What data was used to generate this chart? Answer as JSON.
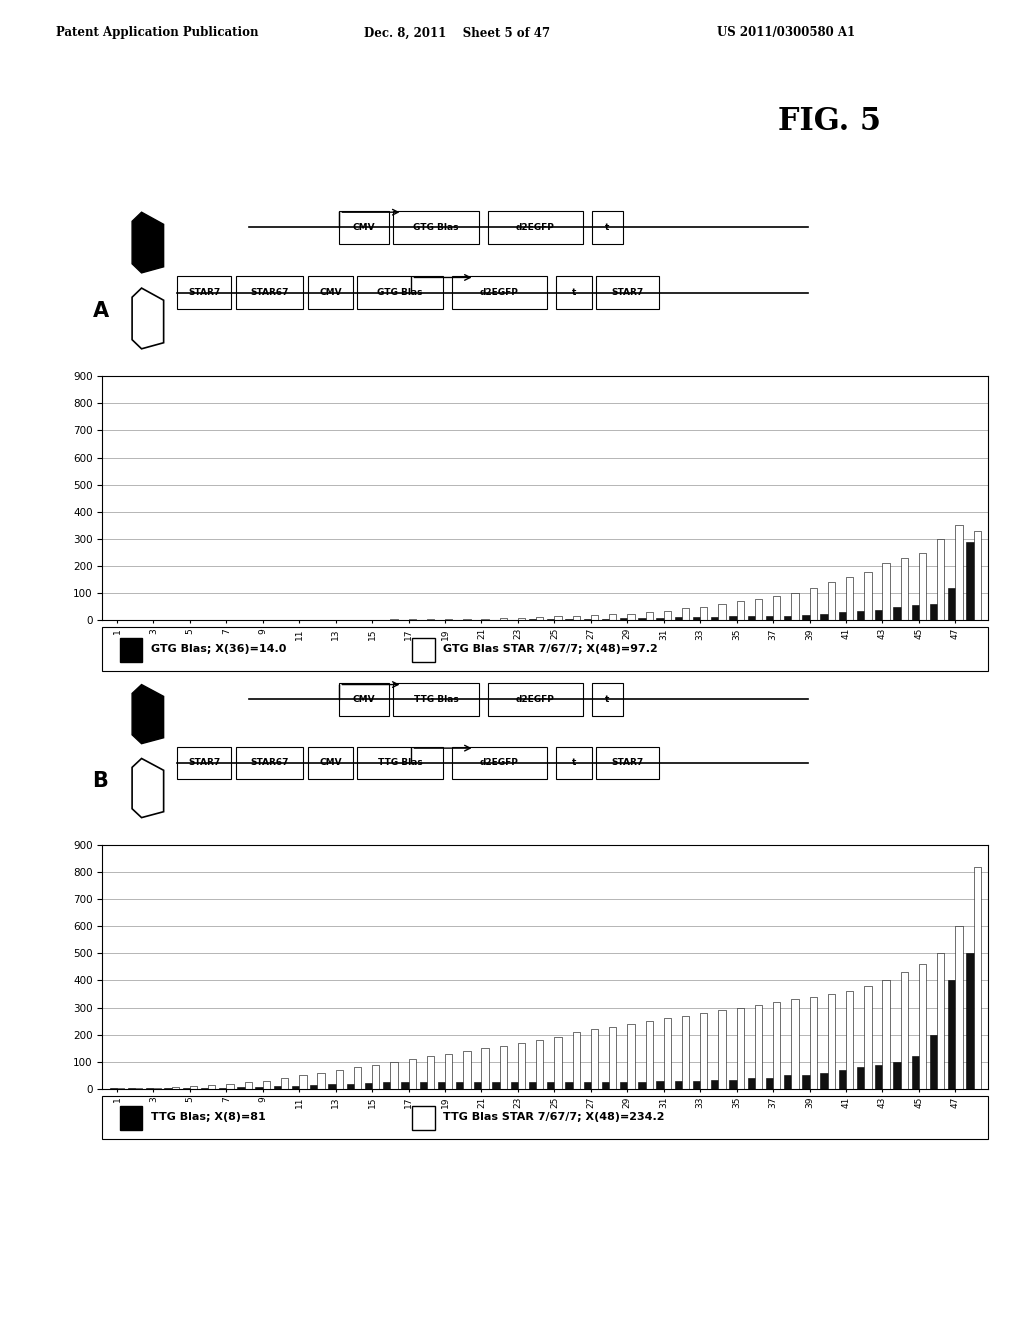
{
  "header_left": "Patent Application Publication",
  "header_mid": "Dec. 8, 2011    Sheet 5 of 47",
  "header_right": "US 2011/0300580 A1",
  "fig_label": "FIG. 5",
  "panel_A_label": "A",
  "panel_B_label": "B",
  "panel_A_diagram_top": [
    "CMV",
    "GTG Blas",
    "d2EGFP",
    "t"
  ],
  "panel_A_diagram_bot": [
    "STAR7",
    "STAR67",
    "CMV",
    "GTG Blas",
    "d2EGFP",
    "t",
    "STAR7"
  ],
  "panel_B_diagram_top": [
    "CMV",
    "TTG Blas",
    "d2EGFP",
    "t"
  ],
  "panel_B_diagram_bot": [
    "STAR7",
    "STAR67",
    "CMV",
    "TTG Blas",
    "d2EGFP",
    "t",
    "STAR7"
  ],
  "x_labels": [
    "1",
    "3",
    "5",
    "7",
    "9",
    "11",
    "13",
    "15",
    "17",
    "19",
    "21",
    "23",
    "25",
    "27",
    "29",
    "31",
    "33",
    "35",
    "37",
    "39",
    "41",
    "43",
    "45",
    "47"
  ],
  "yticks": [
    0,
    100,
    200,
    300,
    400,
    500,
    600,
    700,
    800,
    900
  ],
  "A_black_values": [
    2,
    2,
    2,
    2,
    2,
    2,
    2,
    2,
    2,
    2,
    2,
    2,
    2,
    2,
    2,
    2,
    2,
    2,
    2,
    2,
    2,
    3,
    3,
    4,
    4,
    5,
    5,
    6,
    8,
    9,
    10,
    12,
    14,
    14,
    15,
    16,
    17,
    18,
    20,
    25,
    30,
    35,
    40,
    50,
    55,
    60,
    120,
    290
  ],
  "A_white_values": [
    2,
    2,
    2,
    2,
    2,
    2,
    2,
    2,
    2,
    2,
    2,
    3,
    3,
    3,
    3,
    4,
    4,
    4,
    5,
    5,
    6,
    8,
    10,
    12,
    15,
    18,
    20,
    22,
    25,
    30,
    35,
    45,
    50,
    60,
    70,
    80,
    90,
    100,
    120,
    140,
    160,
    180,
    210,
    230,
    250,
    300,
    350,
    330
  ],
  "B_black_values": [
    2,
    2,
    3,
    3,
    4,
    5,
    5,
    6,
    8,
    10,
    12,
    15,
    18,
    20,
    22,
    25,
    25,
    25,
    25,
    25,
    25,
    25,
    25,
    25,
    25,
    25,
    25,
    25,
    25,
    25,
    30,
    30,
    30,
    35,
    35,
    40,
    40,
    50,
    50,
    60,
    70,
    80,
    90,
    100,
    120,
    200,
    400,
    500
  ],
  "B_white_values": [
    2,
    3,
    5,
    8,
    10,
    15,
    20,
    25,
    30,
    40,
    50,
    60,
    70,
    80,
    90,
    100,
    110,
    120,
    130,
    140,
    150,
    160,
    170,
    180,
    190,
    210,
    220,
    230,
    240,
    250,
    260,
    270,
    280,
    290,
    300,
    310,
    320,
    330,
    340,
    350,
    360,
    380,
    400,
    430,
    460,
    500,
    600,
    820
  ],
  "A_legend_black": "GTG Blas; X(36)=14.0",
  "A_legend_white": "GTG Blas STAR 7/67/7; X(48)=97.2",
  "B_legend_black": "TTG Blas; X(8)=81",
  "B_legend_white": "TTG Blas STAR 7/67/7; X(48)=234.2",
  "bar_width": 0.4,
  "ylim": [
    0,
    900
  ],
  "bg_color": "#ffffff",
  "black_color": "#111111",
  "white_color": "#ffffff",
  "grid_color": "#aaaaaa"
}
